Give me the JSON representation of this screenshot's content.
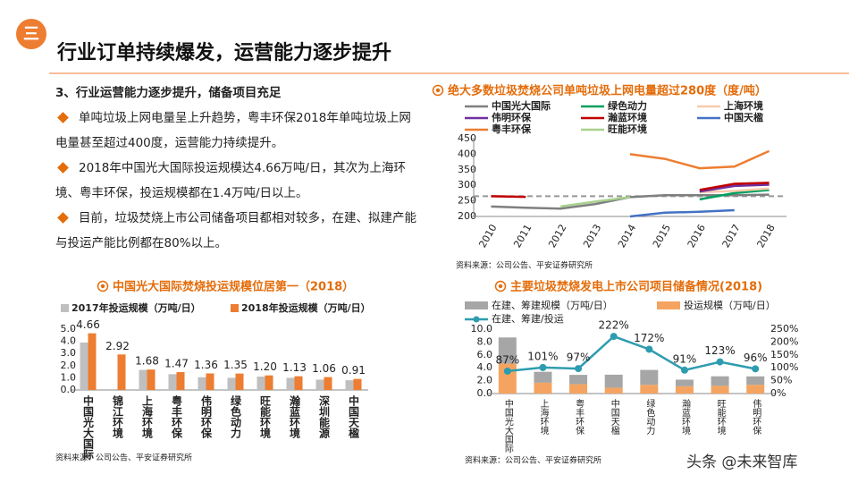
{
  "header": {
    "number": "三",
    "title": "行业订单持续爆发，运营能力逐步提升"
  },
  "section": {
    "heading": "3、行业运营能力逐步提升，储备项目充足",
    "bullets": [
      "单吨垃圾上网电量呈上升趋势，粤丰环保2018年单吨垃圾上网电量甚至超过400度，运营能力持续提升。",
      "2018年中国光大国际投运规模达4.66万吨/日，其次为上海环境、粤丰环保，投运规模都在1.4万吨/日以上。",
      "目前，垃圾焚烧上市公司储备项目都相对较多，在建、拟建产能与投运产能比例都在80%以上。"
    ]
  },
  "watermark": "头条 @未来智库",
  "chart_data": [
    {
      "type": "line",
      "title": "绝大多数垃圾焚烧公司单吨垃圾上网电量超过280度（度/吨）",
      "categories": [
        "2010",
        "2011",
        "2012",
        "2013",
        "2014",
        "2015",
        "2016",
        "2017",
        "2018"
      ],
      "series": [
        {
          "name": "中国光大国际",
          "color": "#7f7f7f",
          "values": [
            232,
            228,
            225,
            240,
            262,
            268,
            268,
            268,
            270
          ]
        },
        {
          "name": "绿色动力",
          "color": "#00a060",
          "values": [
            null,
            null,
            null,
            null,
            null,
            null,
            255,
            275,
            285
          ]
        },
        {
          "name": "上海环境",
          "color": "#f8cbad",
          "values": [
            null,
            null,
            null,
            null,
            null,
            null,
            278,
            282,
            290
          ]
        },
        {
          "name": "伟明环保",
          "color": "#7030a0",
          "values": [
            null,
            null,
            null,
            null,
            null,
            null,
            280,
            298,
            302
          ]
        },
        {
          "name": "瀚蓝环境",
          "color": "#c00000",
          "values": [
            265,
            263,
            null,
            null,
            null,
            null,
            285,
            305,
            308
          ]
        },
        {
          "name": "中国天楹",
          "color": "#4472c4",
          "values": [
            null,
            null,
            null,
            null,
            200,
            212,
            215,
            220,
            null
          ]
        },
        {
          "name": "粤丰环保",
          "color": "#ed7d31",
          "values": [
            null,
            null,
            null,
            null,
            400,
            385,
            355,
            360,
            410
          ]
        },
        {
          "name": "旺能环境",
          "color": "#a9d18e",
          "values": [
            null,
            null,
            232,
            248,
            262,
            null,
            null,
            null,
            null
          ]
        }
      ],
      "ylim": [
        200,
        450
      ],
      "yticks": [
        200,
        250,
        300,
        350,
        400,
        450
      ],
      "reference_line": 265,
      "reference_color": "#999999",
      "source": "资料来源：公司公告、平安证券研究所"
    },
    {
      "type": "bar",
      "title": "中国光大国际焚烧投运规模位居第一（2018）",
      "categories": [
        "中国光大国际",
        "锦江环境",
        "上海环境",
        "粤丰环保",
        "伟明环保",
        "绿色动力",
        "旺能环境",
        "瀚蓝环境",
        "深圳能源",
        "中国天楹"
      ],
      "series": [
        {
          "name": "2017年投运规模（万吨/日）",
          "color": "#bfbfbf",
          "values": [
            3.9,
            null,
            1.65,
            1.3,
            1.05,
            1.0,
            1.1,
            1.0,
            0.85,
            0.8
          ]
        },
        {
          "name": "2018年投运规模（万吨/日）",
          "color": "#ed7d31",
          "values": [
            4.66,
            2.92,
            1.68,
            1.47,
            1.36,
            1.35,
            1.2,
            1.13,
            1.06,
            0.91
          ],
          "value_labels": [
            "4.66",
            "2.92",
            "1.68",
            "1.47",
            "1.36",
            "1.35",
            "1.20",
            "1.13",
            "1.06",
            "0.91"
          ]
        }
      ],
      "ylim": [
        0,
        5
      ],
      "yticks": [
        {
          "value": 0,
          "label": "0.0"
        },
        {
          "value": 1,
          "label": "1.0"
        },
        {
          "value": 2,
          "label": "2.0"
        },
        {
          "value": 3,
          "label": "3.0"
        },
        {
          "value": 4,
          "label": "4.0"
        },
        {
          "value": 5,
          "label": "5.0"
        }
      ],
      "source": "资料来源：公司公告、平安证券研究所"
    },
    {
      "type": "combo",
      "title": "主要垃圾焚烧发电上市公司项目储备情况(2018)",
      "categories": [
        "中国光大国际",
        "上海环境",
        "粤丰环保",
        "中国天楹",
        "绿色动力",
        "瀚蓝环境",
        "旺能环境",
        "伟明环保"
      ],
      "series": [
        {
          "name": "在建、筹建规模（万吨/日）",
          "color": "#a6a6a6",
          "type": "bar",
          "values": [
            4.05,
            1.7,
            1.43,
            2.02,
            2.32,
            1.03,
            1.48,
            1.31
          ]
        },
        {
          "name": "投运规模（万吨/日）",
          "color": "#f4a460",
          "type": "bar",
          "values": [
            4.66,
            1.68,
            1.47,
            0.91,
            1.35,
            1.13,
            1.2,
            1.36
          ]
        },
        {
          "name": "在建、筹建/投运",
          "color": "#2e9cb0",
          "type": "line",
          "axis": "y2",
          "values": [
            87,
            101,
            97,
            222,
            172,
            91,
            123,
            96
          ],
          "value_labels": [
            "87%",
            "101%",
            "97%",
            "222%",
            "172%",
            "91%",
            "123%",
            "96%"
          ]
        }
      ],
      "stacked": true,
      "ylim": [
        0,
        10
      ],
      "yticks": [
        {
          "value": 0,
          "label": "0.0"
        },
        {
          "value": 2,
          "label": "2.0"
        },
        {
          "value": 4,
          "label": "4.0"
        },
        {
          "value": 6,
          "label": "6.0"
        },
        {
          "value": 8,
          "label": "8.0"
        },
        {
          "value": 10,
          "label": "10.0"
        }
      ],
      "y2lim": [
        0,
        250
      ],
      "y2ticks": [
        {
          "value": 0,
          "label": "0%"
        },
        {
          "value": 50,
          "label": "50%"
        },
        {
          "value": 100,
          "label": "100%"
        },
        {
          "value": 150,
          "label": "150%"
        },
        {
          "value": 200,
          "label": "200%"
        },
        {
          "value": 250,
          "label": "250%"
        }
      ],
      "source": "资料来源：公司公告、平安证券研究所"
    }
  ]
}
